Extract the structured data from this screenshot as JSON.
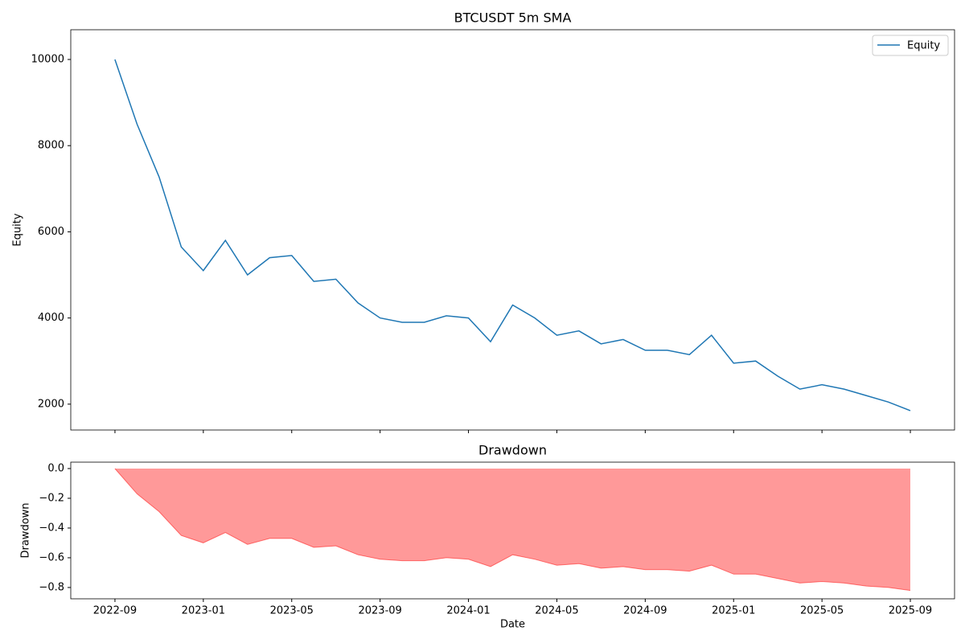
{
  "chart_data": [
    {
      "type": "line",
      "title": "BTCUSDT 5m SMA",
      "ylabel": "Equity",
      "x": [
        "2022-09",
        "2022-10",
        "2022-11",
        "2022-12",
        "2023-01",
        "2023-02",
        "2023-03",
        "2023-04",
        "2023-05",
        "2023-06",
        "2023-07",
        "2023-08",
        "2023-09",
        "2023-10",
        "2023-11",
        "2023-12",
        "2024-01",
        "2024-02",
        "2024-03",
        "2024-04",
        "2024-05",
        "2024-06",
        "2024-07",
        "2024-08",
        "2024-09",
        "2024-10",
        "2024-11",
        "2024-12",
        "2025-01",
        "2025-02",
        "2025-03",
        "2025-04",
        "2025-05",
        "2025-06",
        "2025-07",
        "2025-08",
        "2025-09"
      ],
      "series": [
        {
          "name": "Equity",
          "color": "#1f77b4",
          "values": [
            10000,
            8500,
            7270,
            5650,
            5100,
            5800,
            5000,
            5400,
            5450,
            4850,
            4900,
            4350,
            4000,
            3900,
            3900,
            4050,
            4000,
            3450,
            4300,
            4000,
            3600,
            3700,
            3400,
            3500,
            3250,
            3250,
            3150,
            3600,
            2950,
            3000,
            2650,
            2350,
            2450,
            2350,
            2200,
            2050,
            1850
          ]
        }
      ],
      "legend": "upper right",
      "xlim": [
        "2022-07",
        "2025-11"
      ],
      "xticks": [
        "2022-09",
        "2023-01",
        "2023-05",
        "2023-09",
        "2024-01",
        "2024-05",
        "2024-09",
        "2025-01",
        "2025-05",
        "2025-09"
      ],
      "ylim": [
        1400,
        10690
      ],
      "yticks": [
        2000,
        4000,
        6000,
        8000,
        10000
      ]
    },
    {
      "type": "area",
      "title": "Drawdown",
      "ylabel": "Drawdown",
      "xlabel": "Date",
      "color": "#ff0000",
      "x": [
        "2022-09",
        "2022-10",
        "2022-11",
        "2022-12",
        "2023-01",
        "2023-02",
        "2023-03",
        "2023-04",
        "2023-05",
        "2023-06",
        "2023-07",
        "2023-08",
        "2023-09",
        "2023-10",
        "2023-11",
        "2023-12",
        "2024-01",
        "2024-02",
        "2024-03",
        "2024-04",
        "2024-05",
        "2024-06",
        "2024-07",
        "2024-08",
        "2024-09",
        "2024-10",
        "2024-11",
        "2024-12",
        "2025-01",
        "2025-02",
        "2025-03",
        "2025-04",
        "2025-05",
        "2025-06",
        "2025-07",
        "2025-08",
        "2025-09"
      ],
      "values": [
        0,
        -0.17,
        -0.29,
        -0.45,
        -0.5,
        -0.43,
        -0.51,
        -0.47,
        -0.47,
        -0.53,
        -0.52,
        -0.58,
        -0.61,
        -0.62,
        -0.62,
        -0.6,
        -0.61,
        -0.66,
        -0.58,
        -0.61,
        -0.65,
        -0.64,
        -0.67,
        -0.66,
        -0.68,
        -0.68,
        -0.69,
        -0.65,
        -0.71,
        -0.71,
        -0.74,
        -0.77,
        -0.76,
        -0.77,
        -0.79,
        -0.8,
        -0.82
      ],
      "xlim": [
        "2022-07",
        "2025-11"
      ],
      "xticks": [
        "2022-09",
        "2023-01",
        "2023-05",
        "2023-09",
        "2024-01",
        "2024-05",
        "2024-09",
        "2025-01",
        "2025-05",
        "2025-09"
      ],
      "ylim": [
        -0.876,
        0.043
      ],
      "yticks": [
        {
          "value": -0.8,
          "label": "−0.8"
        },
        {
          "value": -0.6,
          "label": "−0.6"
        },
        {
          "value": -0.4,
          "label": "−0.4"
        },
        {
          "value": -0.2,
          "label": "−0.2"
        },
        {
          "value": 0,
          "label": "0.0"
        }
      ]
    }
  ]
}
